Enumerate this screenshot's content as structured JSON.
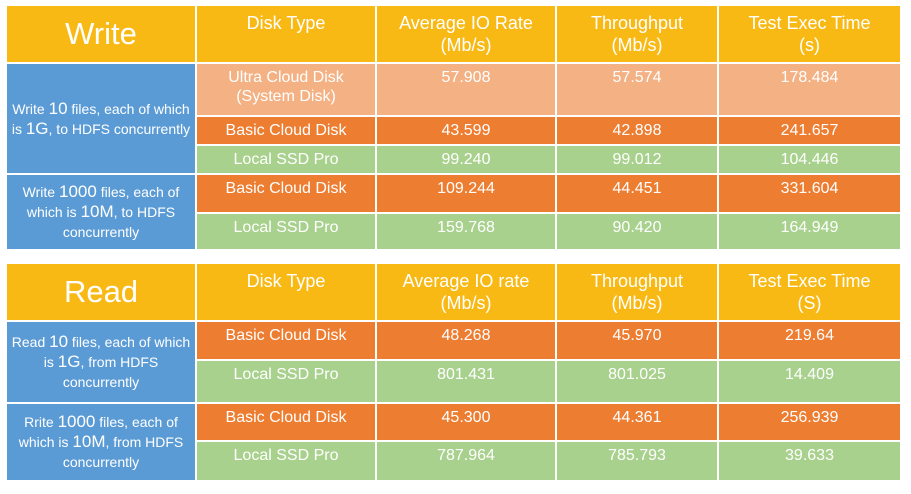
{
  "write_table": {
    "title": "Write",
    "headers": [
      "Disk Type",
      "Average IO Rate",
      "(Mb/s)",
      "Throughput",
      "(Mb/s)",
      "Test Exec Time",
      "(s)"
    ],
    "group1": {
      "label_a": "Write ",
      "label_num": "10",
      "label_b": " files, each of which is ",
      "label_size": "1G",
      "label_c": ", to HDFS concurrently",
      "rows": [
        {
          "disk": "Ultra Cloud Disk (System Disk)",
          "io": "57.908",
          "throughput": "57.574",
          "time": "178.484"
        },
        {
          "disk": "Basic Cloud Disk",
          "io": "43.599",
          "throughput": "42.898",
          "time": "241.657"
        },
        {
          "disk": "Local SSD Pro",
          "io": "99.240",
          "throughput": "99.012",
          "time": "104.446"
        }
      ]
    },
    "group2": {
      "label_a": "Write ",
      "label_num": "1000",
      "label_b": " files, each of which is ",
      "label_size": "10M",
      "label_c": ", to HDFS concurrently",
      "rows": [
        {
          "disk": "Basic Cloud Disk",
          "io": "109.244",
          "throughput": "44.451",
          "time": "331.604"
        },
        {
          "disk": "Local SSD Pro",
          "io": "159.768",
          "throughput": "90.420",
          "time": "164.949"
        }
      ]
    }
  },
  "read_table": {
    "title": "Read",
    "headers": [
      "Disk Type",
      "Average IO rate",
      "(Mb/s)",
      "Throughput",
      "(Mb/s)",
      "Test Exec Time",
      "(S)"
    ],
    "group1": {
      "label_a": "Read ",
      "label_num": "10",
      "label_b": " files, each of which is ",
      "label_size": "1G",
      "label_c": ", from HDFS concurrently",
      "rows": [
        {
          "disk": "Basic Cloud Disk",
          "io": "48.268",
          "throughput": "45.970",
          "time": "219.64"
        },
        {
          "disk": "Local SSD Pro",
          "io": "801.431",
          "throughput": "801.025",
          "time": "14.409"
        }
      ]
    },
    "group2": {
      "label_a": "Rrite ",
      "label_num": "1000",
      "label_b": " files, each of which is ",
      "label_size": "10M",
      "label_c": ", from HDFS concurrently",
      "rows": [
        {
          "disk": "Basic Cloud Disk",
          "io": "45.300",
          "throughput": "44.361",
          "time": "256.939"
        },
        {
          "disk": "Local SSD Pro",
          "io": "787.964",
          "throughput": "785.793",
          "time": "39.633"
        }
      ]
    }
  },
  "colors": {
    "header": "#f9b915",
    "operation": "#5b9bd5",
    "ultra_cloud": "#f4b183",
    "basic_cloud": "#ed7d31",
    "local_ssd": "#a9d18e"
  }
}
